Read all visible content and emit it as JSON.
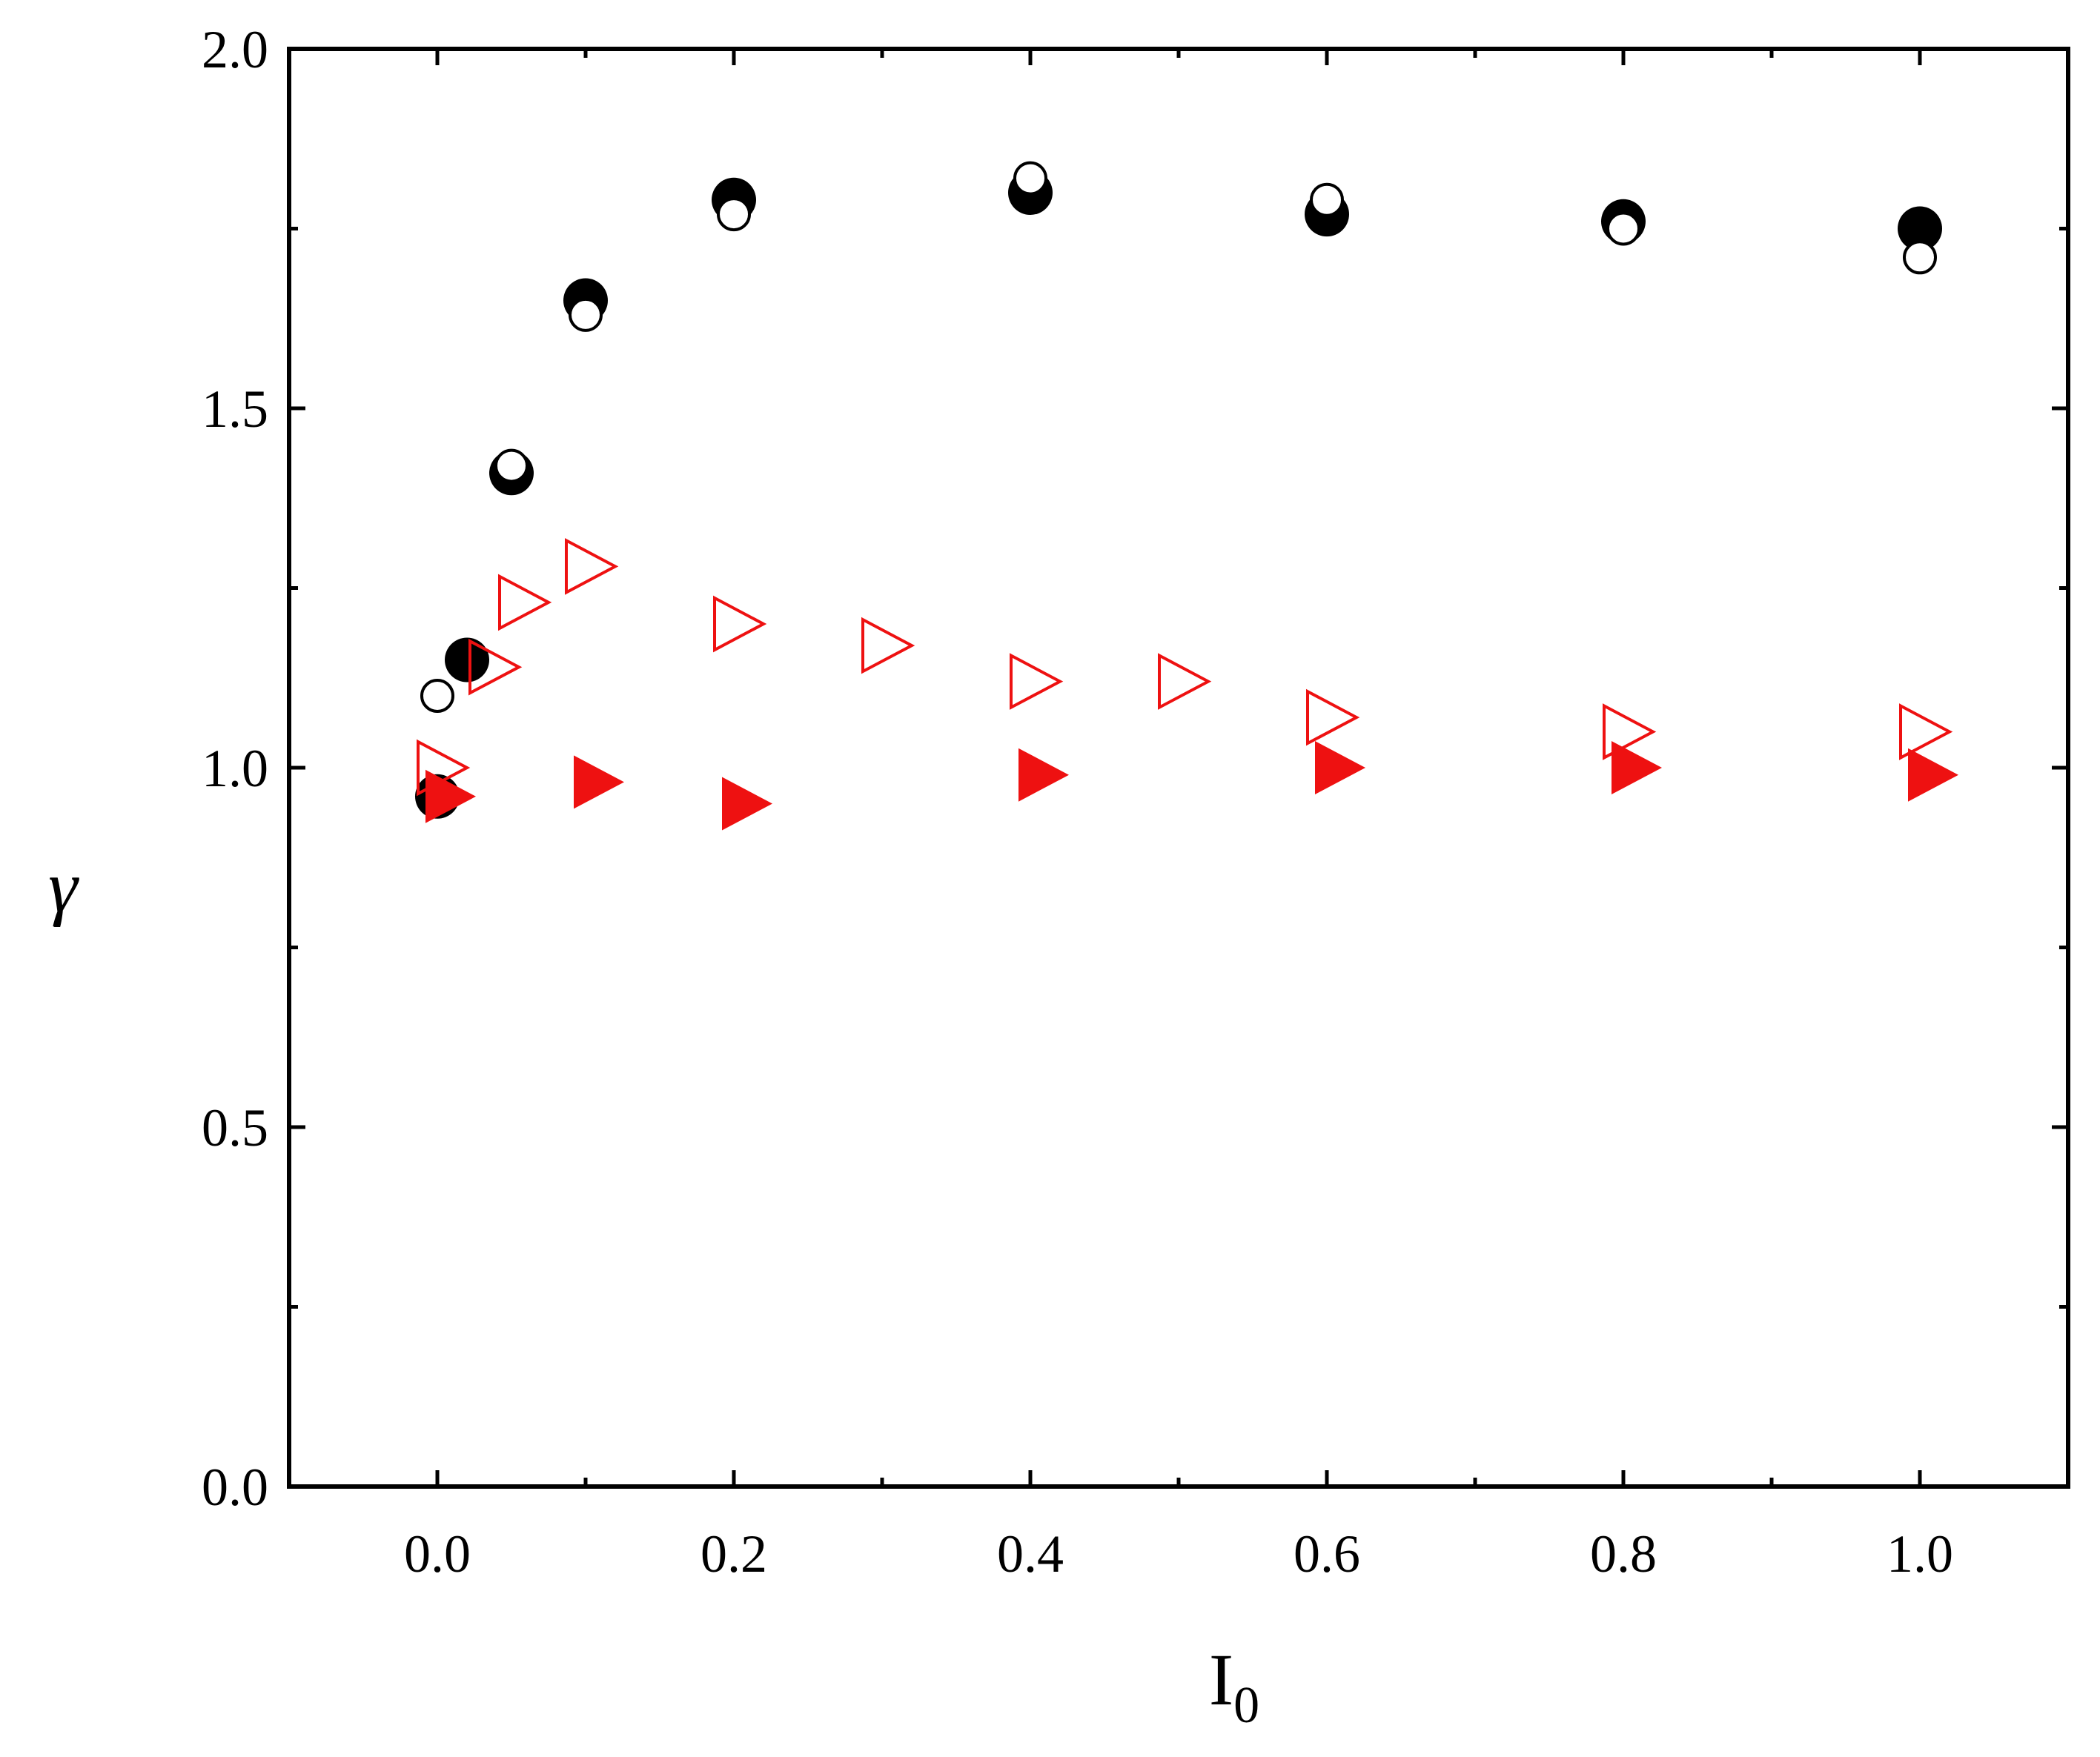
{
  "chart_data": {
    "type": "scatter",
    "title": "",
    "xlabel": "I",
    "xlabel_subscript": "0",
    "ylabel": "γ",
    "xlim": [
      -0.1,
      1.1
    ],
    "ylim": [
      0.0,
      2.0
    ],
    "x_ticks": [
      0.0,
      0.2,
      0.4,
      0.6,
      0.8,
      1.0
    ],
    "x_tick_labels": [
      "0.0",
      "0.2",
      "0.4",
      "0.6",
      "0.8",
      "1.0"
    ],
    "x_minor_ticks": [
      -0.1,
      0.1,
      0.3,
      0.5,
      0.7,
      0.9,
      1.1
    ],
    "y_ticks": [
      0.0,
      0.5,
      1.0,
      1.5,
      2.0
    ],
    "y_tick_labels": [
      "0.0",
      "0.5",
      "1.0",
      "1.5",
      "2.0"
    ],
    "y_minor_ticks": [
      0.25,
      0.75,
      1.25,
      1.75
    ],
    "grid": false,
    "legend": "none",
    "series": [
      {
        "marker": "circle-filled",
        "color": "#000000",
        "points": [
          [
            0.0,
            0.96
          ],
          [
            0.02,
            1.15
          ],
          [
            0.05,
            1.41
          ],
          [
            0.1,
            1.65
          ],
          [
            0.2,
            1.79
          ],
          [
            0.4,
            1.8
          ],
          [
            0.6,
            1.77
          ],
          [
            0.8,
            1.76
          ],
          [
            1.0,
            1.75
          ]
        ]
      },
      {
        "marker": "circle-open",
        "color": "#000000",
        "points": [
          [
            0.0,
            1.1
          ],
          [
            0.05,
            1.42
          ],
          [
            0.1,
            1.63
          ],
          [
            0.2,
            1.77
          ],
          [
            0.4,
            1.82
          ],
          [
            0.6,
            1.79
          ],
          [
            0.8,
            1.75
          ],
          [
            1.0,
            1.71
          ]
        ]
      },
      {
        "marker": "triangle-right-open",
        "color": "#ee1111",
        "points": [
          [
            0.0,
            1.0
          ],
          [
            0.035,
            1.14
          ],
          [
            0.055,
            1.23
          ],
          [
            0.1,
            1.28
          ],
          [
            0.2,
            1.2
          ],
          [
            0.3,
            1.17
          ],
          [
            0.4,
            1.12
          ],
          [
            0.5,
            1.12
          ],
          [
            0.6,
            1.07
          ],
          [
            0.8,
            1.05
          ],
          [
            1.0,
            1.05
          ]
        ]
      },
      {
        "marker": "triangle-right-filled",
        "color": "#ee1111",
        "points": [
          [
            0.005,
            0.96
          ],
          [
            0.105,
            0.98
          ],
          [
            0.205,
            0.95
          ],
          [
            0.405,
            0.99
          ],
          [
            0.605,
            1.0
          ],
          [
            0.805,
            1.0
          ],
          [
            1.005,
            0.99
          ]
        ]
      }
    ]
  }
}
